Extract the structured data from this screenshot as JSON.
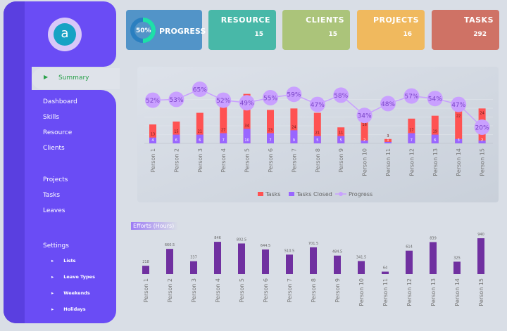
{
  "sidebar": {
    "logo_text": "a",
    "active": "Summary",
    "items": [
      "Dashboard",
      "Skills",
      "Resource",
      "Clients",
      "Projects",
      "Tasks",
      "Leaves",
      "Settings"
    ],
    "settings_sub": [
      "Lists",
      "Leave Types",
      "Weekends",
      "Holidays"
    ]
  },
  "cards": {
    "progress": {
      "label": "PROGRESS",
      "value": "50%",
      "fraction": 0.5
    },
    "resource": {
      "label": "RESOURCE",
      "value": "15"
    },
    "clients": {
      "label": "CLIENTS",
      "value": "15"
    },
    "projects": {
      "label": "PROJECTS",
      "value": "16"
    },
    "tasks": {
      "label": "TASKS",
      "value": "292"
    }
  },
  "colors": {
    "tasks": "#ff5252",
    "closed": "#9966ff",
    "progress": "#c9a0ff",
    "efforts": "#7030a0"
  },
  "chart_data": [
    {
      "type": "bar",
      "title": "",
      "categories": [
        "Person 1",
        "Person 2",
        "Person 3",
        "Person 4",
        "Person 5",
        "Person 6",
        "Person 7",
        "Person 8",
        "Person 9",
        "Person 10",
        "Person 11",
        "Person 12",
        "Person 13",
        "Person 14",
        "Person 15"
      ],
      "series": [
        {
          "name": "Tasks",
          "values": [
            13,
            15,
            21,
            27,
            34,
            23,
            24,
            21,
            11,
            16,
            3,
            17,
            19,
            22,
            24
          ]
        },
        {
          "name": "Tasks Closed",
          "values": [
            4,
            6,
            6,
            7,
            10,
            7,
            9,
            5,
            5,
            2,
            1,
            7,
            6,
            3,
            2
          ]
        },
        {
          "name": "Progress",
          "type": "line",
          "values": [
            52,
            53,
            65,
            52,
            49,
            55,
            59,
            47,
            58,
            34,
            48,
            57,
            54,
            47,
            20
          ],
          "labels": [
            "52%",
            "53%",
            "65%",
            "52%",
            "49%",
            "55%",
            "59%",
            "47%",
            "58%",
            "34%",
            "48%",
            "57%",
            "54%",
            "47%",
            "20%"
          ]
        }
      ],
      "legend": [
        "Tasks",
        "Tasks Closed",
        "Progress"
      ],
      "legend_position": "bottom"
    },
    {
      "type": "bar",
      "title": "Efforts (Hours)",
      "categories": [
        "Person 1",
        "Person 2",
        "Person 3",
        "Person 4",
        "Person 5",
        "Person 6",
        "Person 7",
        "Person 8",
        "Person 9",
        "Person 10",
        "Person 11",
        "Person 12",
        "Person 13",
        "Person 14",
        "Person 15"
      ],
      "values": [
        218,
        660.5,
        337,
        846,
        802.5,
        644.5,
        510.5,
        701.5,
        484.5,
        341.5,
        64,
        614,
        839,
        325,
        940
      ]
    }
  ]
}
